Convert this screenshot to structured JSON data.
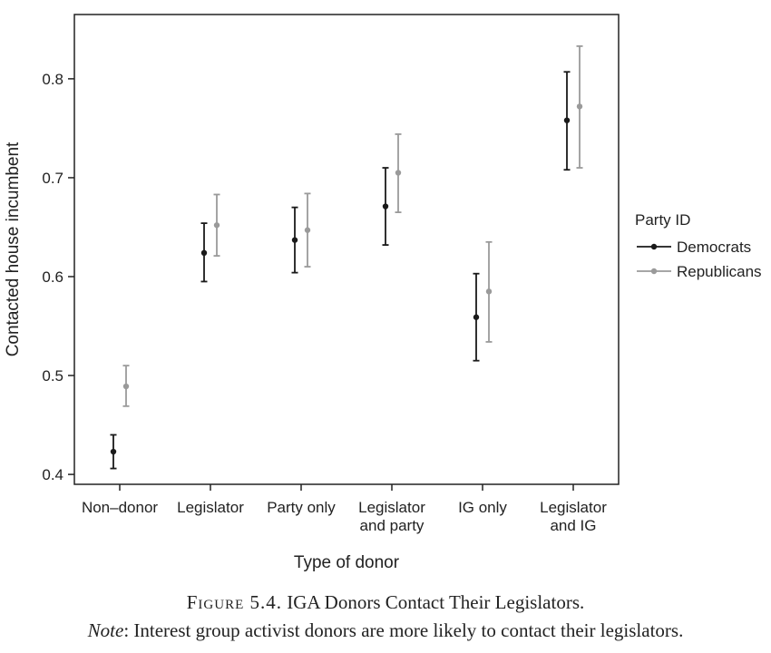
{
  "chart_data": {
    "type": "scatter",
    "categories": [
      "Non–donor",
      "Legislator",
      "Party only",
      "Legislator and party",
      "IG only",
      "Legislator and IG"
    ],
    "category_lines": [
      [
        "Non–donor"
      ],
      [
        "Legislator"
      ],
      [
        "Party only"
      ],
      [
        "Legislator",
        "and party"
      ],
      [
        "IG only"
      ],
      [
        "Legislator",
        "and IG"
      ]
    ],
    "series": [
      {
        "name": "Democrats",
        "color": "#1a1a1a",
        "values": [
          0.423,
          0.624,
          0.637,
          0.671,
          0.559,
          0.758
        ],
        "lower": [
          0.406,
          0.595,
          0.604,
          0.632,
          0.515,
          0.708
        ],
        "upper": [
          0.44,
          0.654,
          0.67,
          0.71,
          0.603,
          0.807
        ]
      },
      {
        "name": "Republicans",
        "color": "#9a9a9a",
        "values": [
          0.489,
          0.652,
          0.647,
          0.705,
          0.585,
          0.772
        ],
        "lower": [
          0.469,
          0.621,
          0.61,
          0.665,
          0.534,
          0.71
        ],
        "upper": [
          0.51,
          0.683,
          0.684,
          0.744,
          0.635,
          0.833
        ]
      }
    ],
    "xlabel": "Type of donor",
    "ylabel": "Contacted house incumbent",
    "ylim": [
      0.39,
      0.865
    ],
    "yticks": [
      0.4,
      0.5,
      0.6,
      0.7,
      0.8
    ],
    "grid": false,
    "legend_title": "Party ID",
    "legend_placement": "right"
  },
  "caption": {
    "figure_label": "Figure 5.4.",
    "title": "IGA Donors Contact Their Legislators.",
    "note_label": "Note",
    "note_text": ": Interest group activist donors are more likely to contact their legislators."
  }
}
